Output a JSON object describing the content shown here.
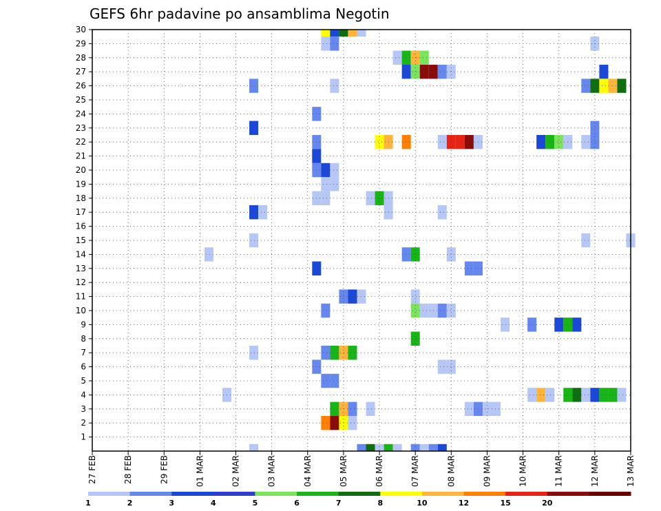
{
  "chart_data": {
    "type": "heatmap",
    "title": "GEFS 6hr padavine po ansamblima Negotin",
    "xlabel": "",
    "ylabel": "",
    "x_ticks": [
      "27 FEB",
      "28 FEB",
      "29 FEB",
      "01 MAR",
      "02 MAR",
      "03 MAR",
      "04 MAR",
      "05 MAR",
      "06 MAR",
      "07 MAR",
      "08 MAR",
      "09 MAR",
      "10 MAR",
      "11 MAR",
      "12 MAR",
      "13 MAR"
    ],
    "y_ticks": [
      "1",
      "2",
      "3",
      "4",
      "5",
      "6",
      "7",
      "8",
      "9",
      "10",
      "11",
      "12",
      "13",
      "14",
      "15",
      "16",
      "17",
      "18",
      "19",
      "20",
      "21",
      "22",
      "23",
      "24",
      "25",
      "26",
      "27",
      "28",
      "29",
      "30"
    ],
    "xlim_steps": [
      0,
      60
    ],
    "ylim_members": [
      0,
      30
    ],
    "grid": true,
    "legend_placement": "bottom",
    "legend": {
      "labels": [
        "1",
        "2",
        "3",
        "4",
        "5",
        "6",
        "7",
        "8",
        "10",
        "12",
        "15",
        "20"
      ],
      "colors": [
        "#b7c7f5",
        "#6688ee",
        "#1c48d8",
        "#2b3fd0",
        "#7be35c",
        "#18b418",
        "#0f6e0f",
        "#ffff00",
        "#ffb43c",
        "#ff7f00",
        "#e62314",
        "#8b0a0a",
        "#6e0000"
      ]
    },
    "colors": {
      "c1": "#b7c7f5",
      "c2": "#6688ee",
      "c3": "#1c48d8",
      "c5": "#7be35c",
      "c6": "#18b418",
      "c7": "#0f6e0f",
      "c8": "#ffff00",
      "c10": "#ffb43c",
      "c12": "#ff7f00",
      "c15": "#e62314",
      "c20": "#8b0a0a"
    },
    "cells": [
      [
        30,
        26,
        "c8"
      ],
      [
        30,
        27,
        "c3"
      ],
      [
        30,
        28,
        "c7"
      ],
      [
        30,
        29,
        "c10"
      ],
      [
        30,
        30,
        "c1"
      ],
      [
        29,
        26,
        "c1"
      ],
      [
        29,
        27,
        "c2"
      ],
      [
        29,
        56,
        "c1"
      ],
      [
        28,
        34,
        "c1"
      ],
      [
        28,
        35,
        "c6"
      ],
      [
        28,
        36,
        "c10"
      ],
      [
        28,
        37,
        "c5"
      ],
      [
        27,
        35,
        "c3"
      ],
      [
        27,
        36,
        "c5"
      ],
      [
        27,
        37,
        "c20"
      ],
      [
        27,
        38,
        "c20"
      ],
      [
        27,
        39,
        "c2"
      ],
      [
        27,
        40,
        "c1"
      ],
      [
        27,
        57,
        "c3"
      ],
      [
        26,
        18,
        "c2"
      ],
      [
        26,
        27,
        "c1"
      ],
      [
        26,
        55,
        "c2"
      ],
      [
        26,
        56,
        "c7"
      ],
      [
        26,
        57,
        "c8"
      ],
      [
        26,
        58,
        "c10"
      ],
      [
        26,
        59,
        "c7"
      ],
      [
        24,
        25,
        "c2"
      ],
      [
        23,
        18,
        "c3"
      ],
      [
        23,
        56,
        "c2"
      ],
      [
        22,
        25,
        "c2"
      ],
      [
        22,
        32,
        "c8"
      ],
      [
        22,
        33,
        "c10"
      ],
      [
        22,
        35,
        "c12"
      ],
      [
        22,
        39,
        "c1"
      ],
      [
        22,
        40,
        "c15"
      ],
      [
        22,
        41,
        "c15"
      ],
      [
        22,
        42,
        "c20"
      ],
      [
        22,
        43,
        "c1"
      ],
      [
        22,
        50,
        "c3"
      ],
      [
        22,
        51,
        "c6"
      ],
      [
        22,
        52,
        "c5"
      ],
      [
        22,
        53,
        "c1"
      ],
      [
        22,
        55,
        "c1"
      ],
      [
        22,
        56,
        "c2"
      ],
      [
        21,
        25,
        "c3"
      ],
      [
        20,
        25,
        "c2"
      ],
      [
        20,
        26,
        "c3"
      ],
      [
        20,
        27,
        "c1"
      ],
      [
        19,
        26,
        "c1"
      ],
      [
        19,
        27,
        "c1"
      ],
      [
        18,
        25,
        "c1"
      ],
      [
        18,
        26,
        "c1"
      ],
      [
        18,
        31,
        "c1"
      ],
      [
        18,
        32,
        "c6"
      ],
      [
        18,
        33,
        "c1"
      ],
      [
        17,
        18,
        "c3"
      ],
      [
        17,
        19,
        "c1"
      ],
      [
        17,
        33,
        "c1"
      ],
      [
        17,
        39,
        "c1"
      ],
      [
        15,
        18,
        "c1"
      ],
      [
        15,
        55,
        "c1"
      ],
      [
        15,
        60,
        "c1"
      ],
      [
        14,
        13,
        "c1"
      ],
      [
        14,
        35,
        "c2"
      ],
      [
        14,
        36,
        "c6"
      ],
      [
        14,
        40,
        "c1"
      ],
      [
        13,
        25,
        "c3"
      ],
      [
        13,
        42,
        "c2"
      ],
      [
        13,
        43,
        "c2"
      ],
      [
        11,
        28,
        "c2"
      ],
      [
        11,
        29,
        "c3"
      ],
      [
        11,
        30,
        "c1"
      ],
      [
        11,
        36,
        "c1"
      ],
      [
        10,
        26,
        "c2"
      ],
      [
        10,
        36,
        "c5"
      ],
      [
        10,
        37,
        "c1"
      ],
      [
        10,
        38,
        "c1"
      ],
      [
        10,
        39,
        "c2"
      ],
      [
        10,
        40,
        "c1"
      ],
      [
        9,
        46,
        "c1"
      ],
      [
        9,
        49,
        "c2"
      ],
      [
        9,
        52,
        "c3"
      ],
      [
        9,
        53,
        "c6"
      ],
      [
        9,
        54,
        "c3"
      ],
      [
        8,
        36,
        "c6"
      ],
      [
        7,
        18,
        "c1"
      ],
      [
        7,
        26,
        "c2"
      ],
      [
        7,
        27,
        "c6"
      ],
      [
        7,
        28,
        "c10"
      ],
      [
        7,
        29,
        "c6"
      ],
      [
        6,
        25,
        "c2"
      ],
      [
        6,
        39,
        "c1"
      ],
      [
        6,
        40,
        "c1"
      ],
      [
        5,
        26,
        "c2"
      ],
      [
        5,
        27,
        "c2"
      ],
      [
        4,
        15,
        "c1"
      ],
      [
        4,
        49,
        "c1"
      ],
      [
        4,
        50,
        "c10"
      ],
      [
        4,
        51,
        "c1"
      ],
      [
        4,
        53,
        "c6"
      ],
      [
        4,
        54,
        "c7"
      ],
      [
        4,
        55,
        "c1"
      ],
      [
        4,
        56,
        "c3"
      ],
      [
        4,
        57,
        "c6"
      ],
      [
        4,
        58,
        "c6"
      ],
      [
        4,
        59,
        "c1"
      ],
      [
        3,
        27,
        "c6"
      ],
      [
        3,
        28,
        "c10"
      ],
      [
        3,
        29,
        "c2"
      ],
      [
        3,
        31,
        "c1"
      ],
      [
        3,
        42,
        "c1"
      ],
      [
        3,
        43,
        "c2"
      ],
      [
        3,
        44,
        "c1"
      ],
      [
        3,
        45,
        "c1"
      ],
      [
        2,
        26,
        "c12"
      ],
      [
        2,
        27,
        "c20"
      ],
      [
        2,
        28,
        "c8"
      ],
      [
        2,
        29,
        "c1"
      ],
      [
        0,
        18,
        "c1"
      ],
      [
        0,
        30,
        "c2"
      ],
      [
        0,
        31,
        "c7"
      ],
      [
        0,
        32,
        "c1"
      ],
      [
        0,
        33,
        "c6"
      ],
      [
        0,
        34,
        "c1"
      ],
      [
        0,
        36,
        "c2"
      ],
      [
        0,
        37,
        "c1"
      ],
      [
        0,
        38,
        "c2"
      ],
      [
        0,
        39,
        "c3"
      ]
    ]
  }
}
